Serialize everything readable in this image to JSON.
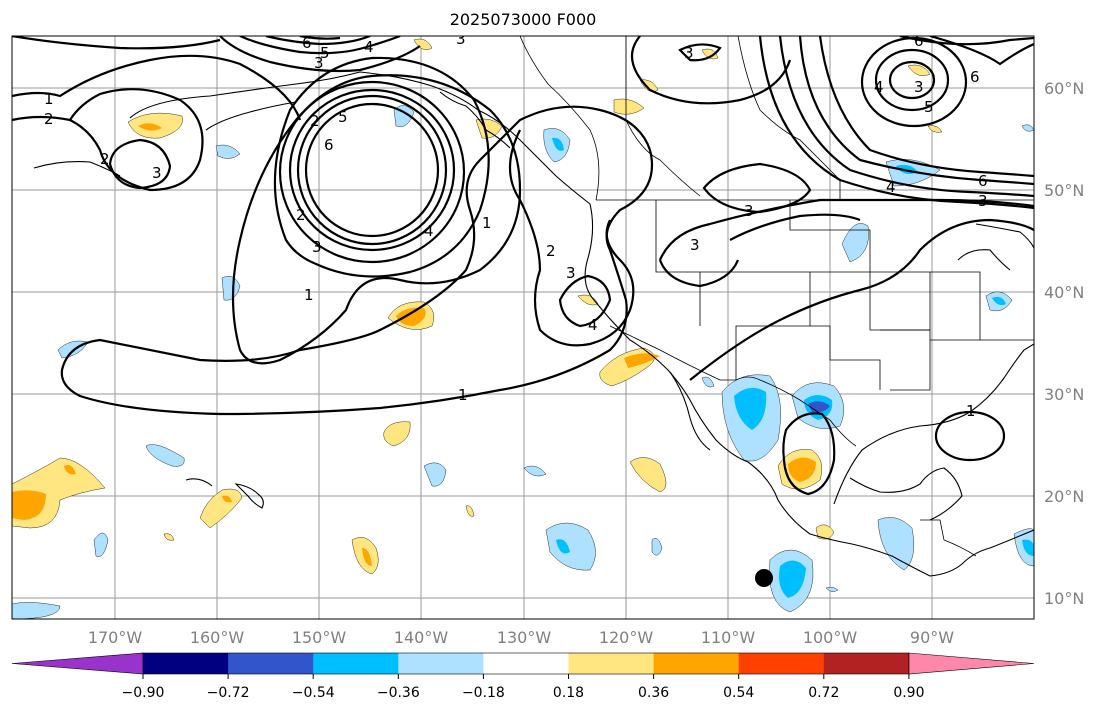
{
  "title": "2025073000 F000",
  "lon_ticks": [
    "170°W",
    "160°W",
    "150°W",
    "140°W",
    "130°W",
    "120°W",
    "110°W",
    "100°W",
    "90°W"
  ],
  "lat_ticks": [
    "60°N",
    "50°N",
    "40°N",
    "30°N",
    "20°N",
    "10°N"
  ],
  "colorbar": {
    "ticks": [
      "−0.90",
      "−0.72",
      "−0.54",
      "−0.36",
      "−0.18",
      "0.18",
      "0.36",
      "0.54",
      "0.72",
      "0.90"
    ],
    "colors": [
      "#9933cc",
      "#000080",
      "#3355cc",
      "#00bfff",
      "#aee0ff",
      "#ffffff",
      "#ffe680",
      "#ffa500",
      "#ff4000",
      "#b22222",
      "#ff88aa"
    ]
  },
  "contour_labels": [
    "1",
    "2",
    "3",
    "4",
    "5",
    "6"
  ],
  "map": {
    "region": "Eastern North Pacific and North America",
    "lon_range": [
      -180,
      -80
    ],
    "lat_range": [
      8,
      65
    ],
    "marker": "storm center dot"
  }
}
